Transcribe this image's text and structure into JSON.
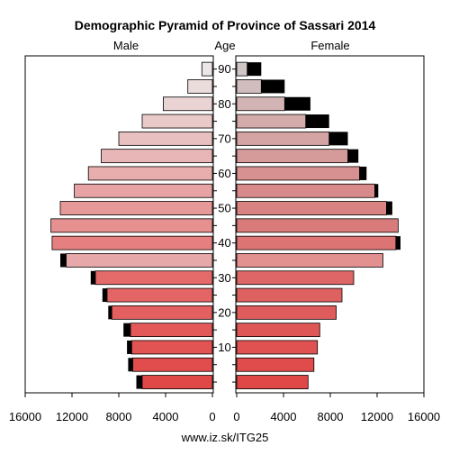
{
  "chart_data": {
    "type": "bar",
    "title": "Demographic Pyramid of Province of Sassari 2014",
    "left_label": "Male",
    "center_label": "Age",
    "right_label": "Female",
    "footer": "www.iz.sk/ITG25",
    "age_groups": [
      "0-4",
      "5-9",
      "10-14",
      "15-19",
      "20-24",
      "25-29",
      "30-34",
      "35-39",
      "40-44",
      "45-49",
      "50-54",
      "55-59",
      "60-64",
      "65-69",
      "70-74",
      "75-79",
      "80-84",
      "85-89",
      "90+"
    ],
    "age_ticks": [
      "10",
      "20",
      "30",
      "40",
      "50",
      "60",
      "70",
      "80",
      "90"
    ],
    "x_ticks": [
      "16000",
      "12000",
      "8000",
      "4000",
      "0"
    ],
    "x_ticks_right": [
      "0",
      "4000",
      "8000",
      "12000",
      "16000"
    ],
    "xlim": [
      0,
      16000
    ],
    "series": [
      {
        "name": "Male",
        "values": [
          6000,
          6800,
          6900,
          7000,
          8600,
          9000,
          10000,
          12500,
          13700,
          13800,
          13000,
          11800,
          10600,
          9500,
          8000,
          6000,
          4200,
          2100,
          900
        ]
      },
      {
        "name": "Female",
        "values": [
          6100,
          6600,
          6900,
          7100,
          8500,
          9000,
          10000,
          12500,
          13600,
          13800,
          12800,
          11800,
          10500,
          9500,
          7900,
          5900,
          4100,
          2100,
          900
        ]
      }
    ],
    "foreign_born": {
      "male": [
        500,
        400,
        400,
        600,
        300,
        400,
        400,
        500,
        0,
        0,
        0,
        0,
        0,
        0,
        0,
        0,
        0,
        0,
        0
      ],
      "female": [
        0,
        0,
        0,
        0,
        0,
        0,
        0,
        0,
        400,
        0,
        500,
        300,
        600,
        900,
        1600,
        2000,
        2200,
        2000,
        1200
      ]
    },
    "bar_colors": [
      "#e04848",
      "#e14d4d",
      "#e25353",
      "#e35959",
      "#e45f5f",
      "#e46565",
      "#e56b6b",
      "#e6a8a8",
      "#e68080",
      "#e69090",
      "#e79999",
      "#e7a3a3",
      "#e8adad",
      "#e8b6b6",
      "#e9c0c0",
      "#eac9c9",
      "#ead3d3",
      "#ebdcdc",
      "#ece6e6"
    ],
    "female_colors": [
      "#e04848",
      "#e04c4c",
      "#e05151",
      "#df5656",
      "#df5c5c",
      "#de6161",
      "#de6666",
      "#e29090",
      "#dc7474",
      "#da7b7b",
      "#d98282",
      "#d88a8a",
      "#d79191",
      "#d59a9a",
      "#d4a3a3",
      "#d3abab",
      "#d2b4b4",
      "#d1bdbd",
      "#d0c6c6"
    ],
    "excess_color": "#000000"
  }
}
